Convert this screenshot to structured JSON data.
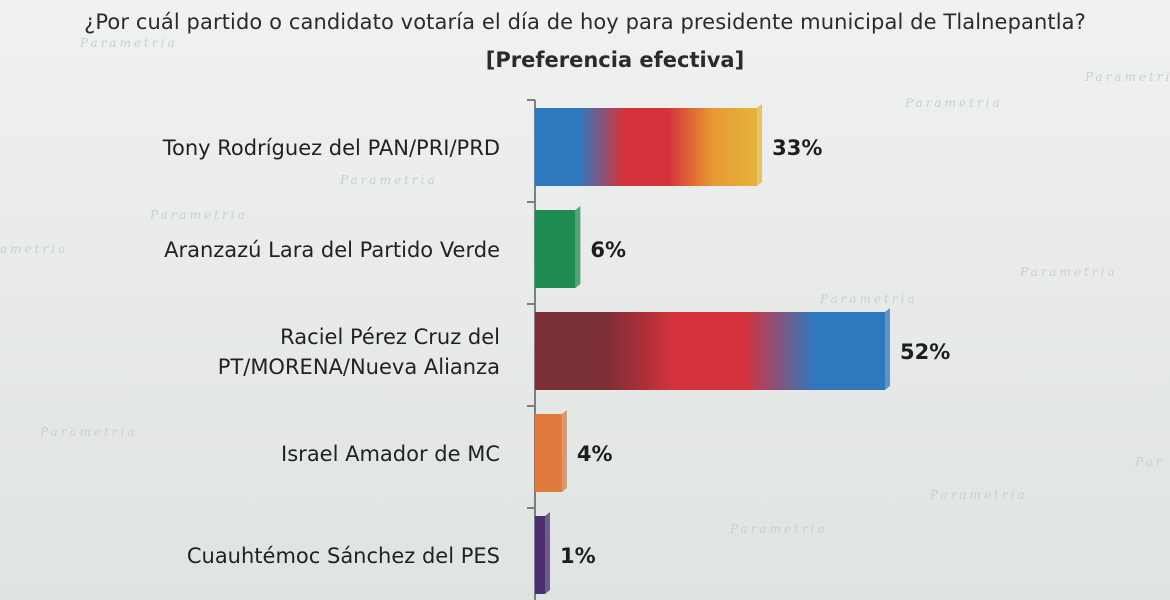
{
  "chart_data": {
    "type": "bar",
    "orientation": "horizontal",
    "title": "¿Por cuál partido o candidato votaría el día de hoy para presidente municipal de Tlalnepantla?",
    "subtitle": "[Preferencia efectiva]",
    "categories": [
      [
        "Tony Rodríguez del PAN/PRI/PRD"
      ],
      [
        "Aranzazú Lara del Partido Verde"
      ],
      [
        "Raciel Pérez Cruz del",
        "PT/MORENA/Nueva Alianza"
      ],
      [
        "Israel Amador de MC"
      ],
      [
        "Cuauhtémoc Sánchez del PES"
      ]
    ],
    "values": [
      33,
      6,
      52,
      4,
      1
    ],
    "value_labels": [
      "33%",
      "6%",
      "52%",
      "4%",
      "1%"
    ],
    "colors": [
      [
        "#2e78bf",
        "#2e78bf",
        "#d6323c",
        "#d6323c",
        "#e79a33",
        "#e6b33a"
      ],
      [
        "#1f8c52",
        "#1f8c52"
      ],
      [
        "#7a2e36",
        "#7a2e36",
        "#d6323c",
        "#d6323c",
        "#2e78bf",
        "#2e78bf"
      ],
      [
        "#e07a3c",
        "#e07a3c"
      ],
      [
        "#4a2e6e",
        "#4a2e6e"
      ]
    ],
    "xlim": [
      0,
      52
    ],
    "grid": false,
    "legend": "none"
  }
}
